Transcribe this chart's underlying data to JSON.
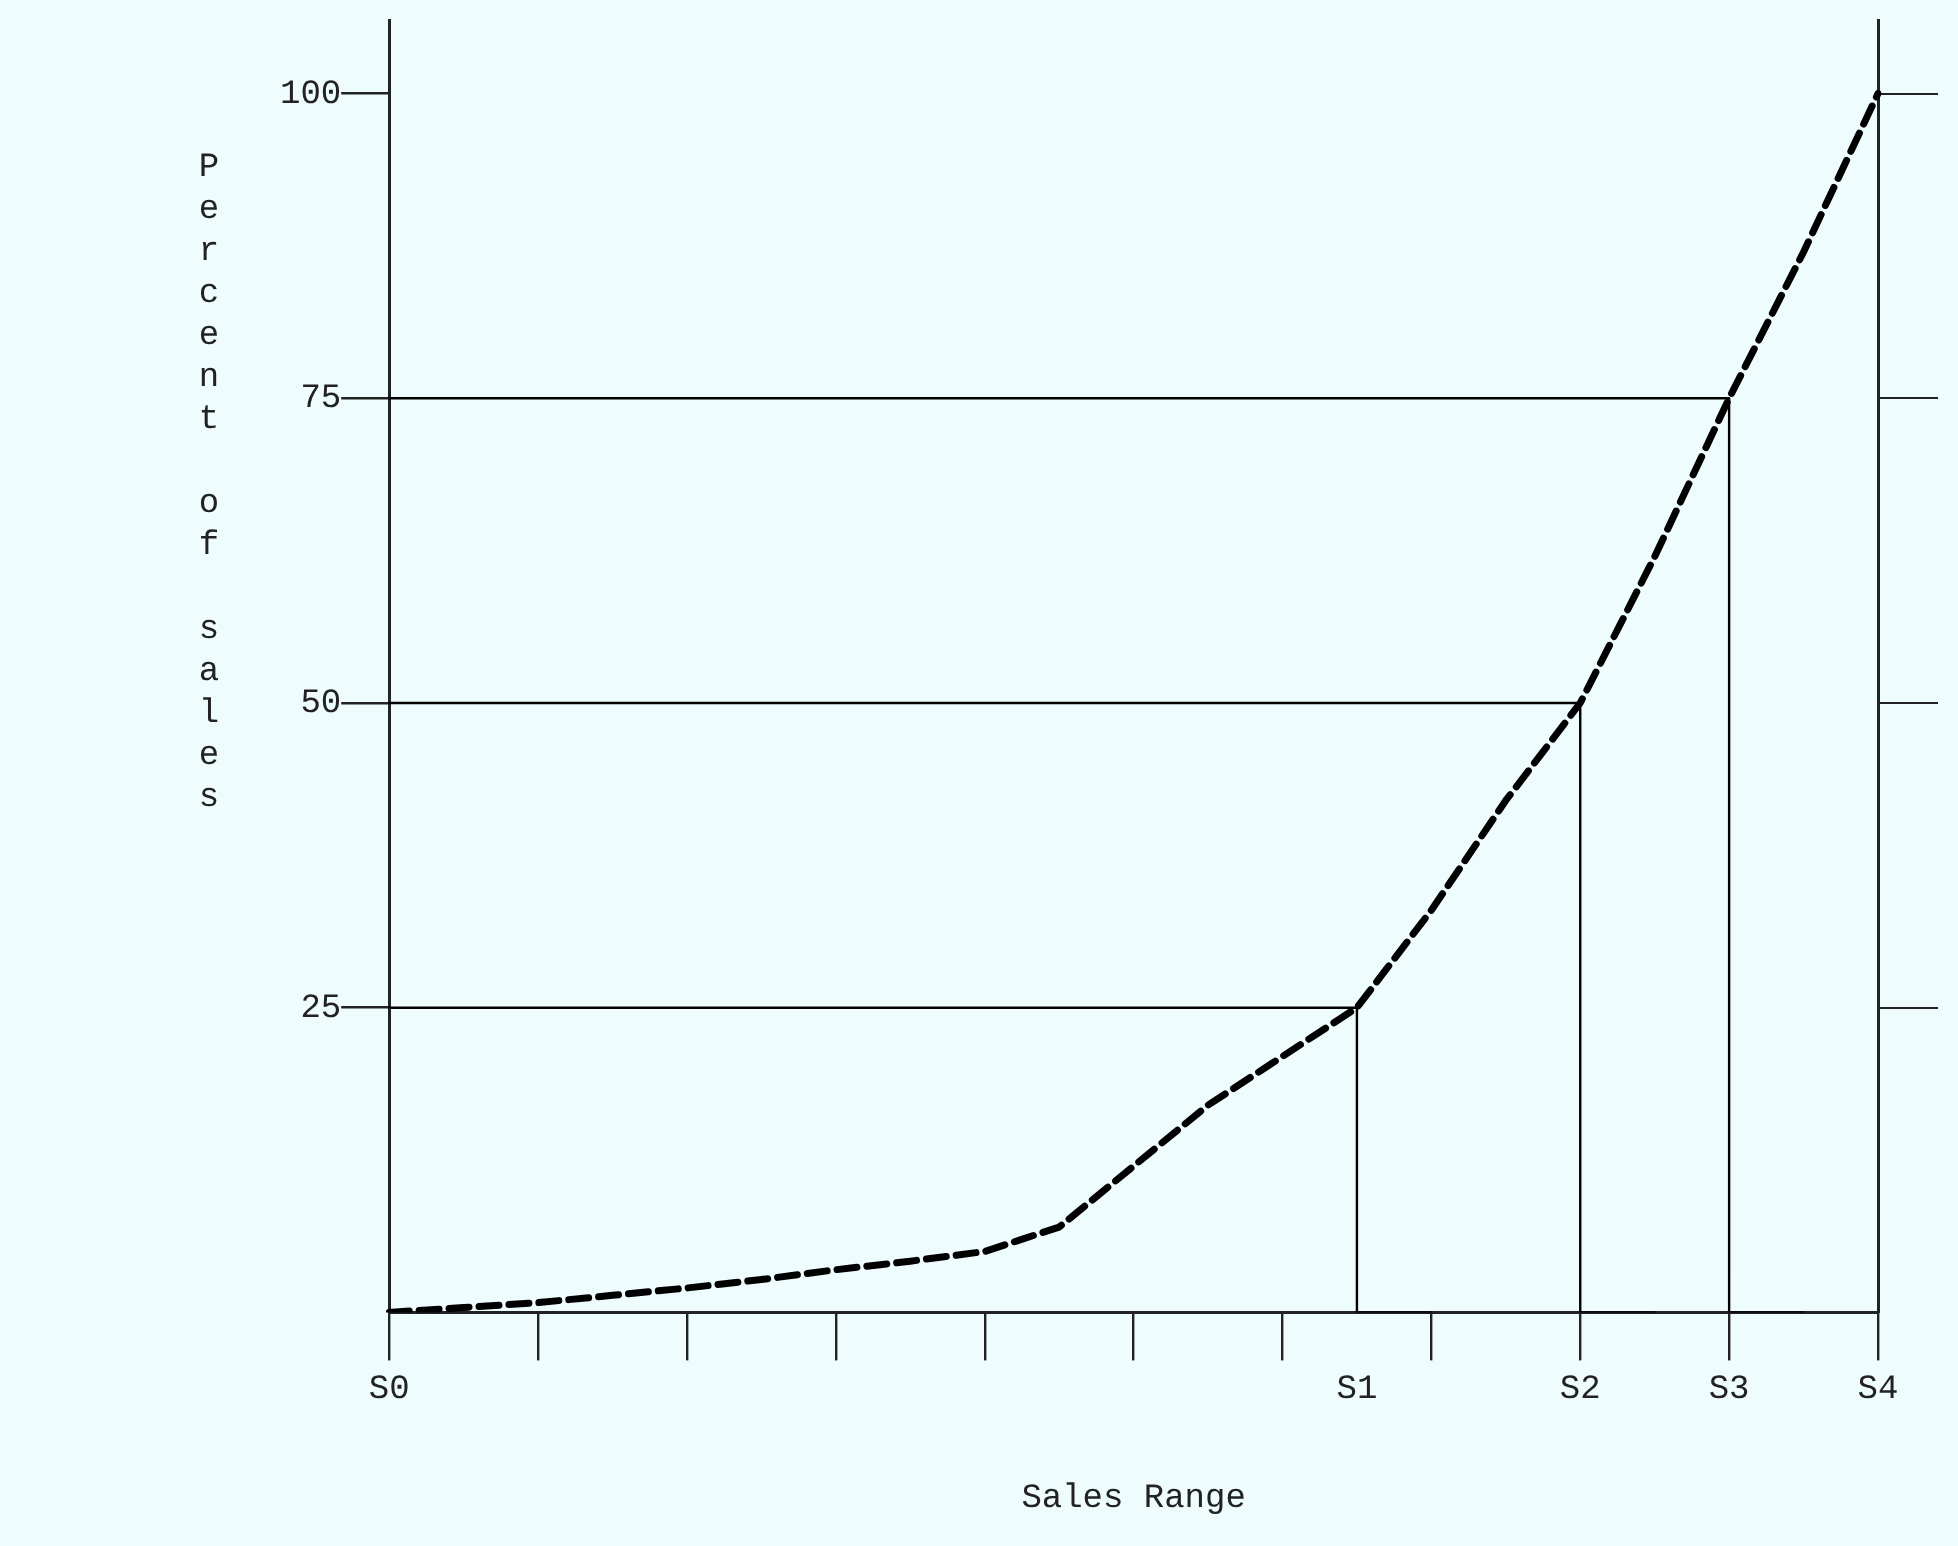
{
  "chart_data": {
    "type": "line",
    "xlabel": "Sales Range",
    "ylabel": "Percent of sales",
    "categories": [
      "S0",
      null,
      null,
      null,
      null,
      null,
      null,
      null,
      null,
      null,
      null,
      null,
      null,
      "S1",
      null,
      null,
      "S2",
      null,
      "S3",
      null,
      "S4"
    ],
    "ylim": [
      0,
      106
    ],
    "yticks": [
      25,
      50,
      75,
      100
    ],
    "series": [
      {
        "color": "#000000",
        "line_style": "dashed",
        "values": [
          0,
          0.4,
          0.8,
          1.4,
          2,
          2.7,
          3.5,
          4.2,
          5,
          7,
          12,
          17,
          21,
          25,
          33,
          42,
          50,
          62,
          75,
          87,
          100
        ]
      },
      {
        "type": "step",
        "color": "#000000",
        "line_style": "solid",
        "values": [
          25,
          25,
          25,
          25,
          25,
          25,
          25,
          25,
          25,
          25,
          25,
          25,
          25,
          25,
          0,
          null,
          null,
          null,
          null,
          null,
          null
        ]
      },
      {
        "type": "step",
        "color": "#000000",
        "line_style": "solid",
        "values": [
          50,
          50,
          50,
          50,
          50,
          50,
          50,
          50,
          50,
          50,
          50,
          50,
          50,
          50,
          50,
          50,
          50,
          0,
          null,
          null,
          null
        ]
      },
      {
        "type": "step",
        "color": "#000000",
        "line_style": "solid",
        "values": [
          75,
          75,
          75,
          75,
          75,
          75,
          75,
          75,
          75,
          75,
          75,
          75,
          75,
          75,
          75,
          75,
          75,
          75,
          75,
          0,
          null
        ]
      }
    ],
    "marker": "none",
    "grid": false,
    "legend": false
  }
}
